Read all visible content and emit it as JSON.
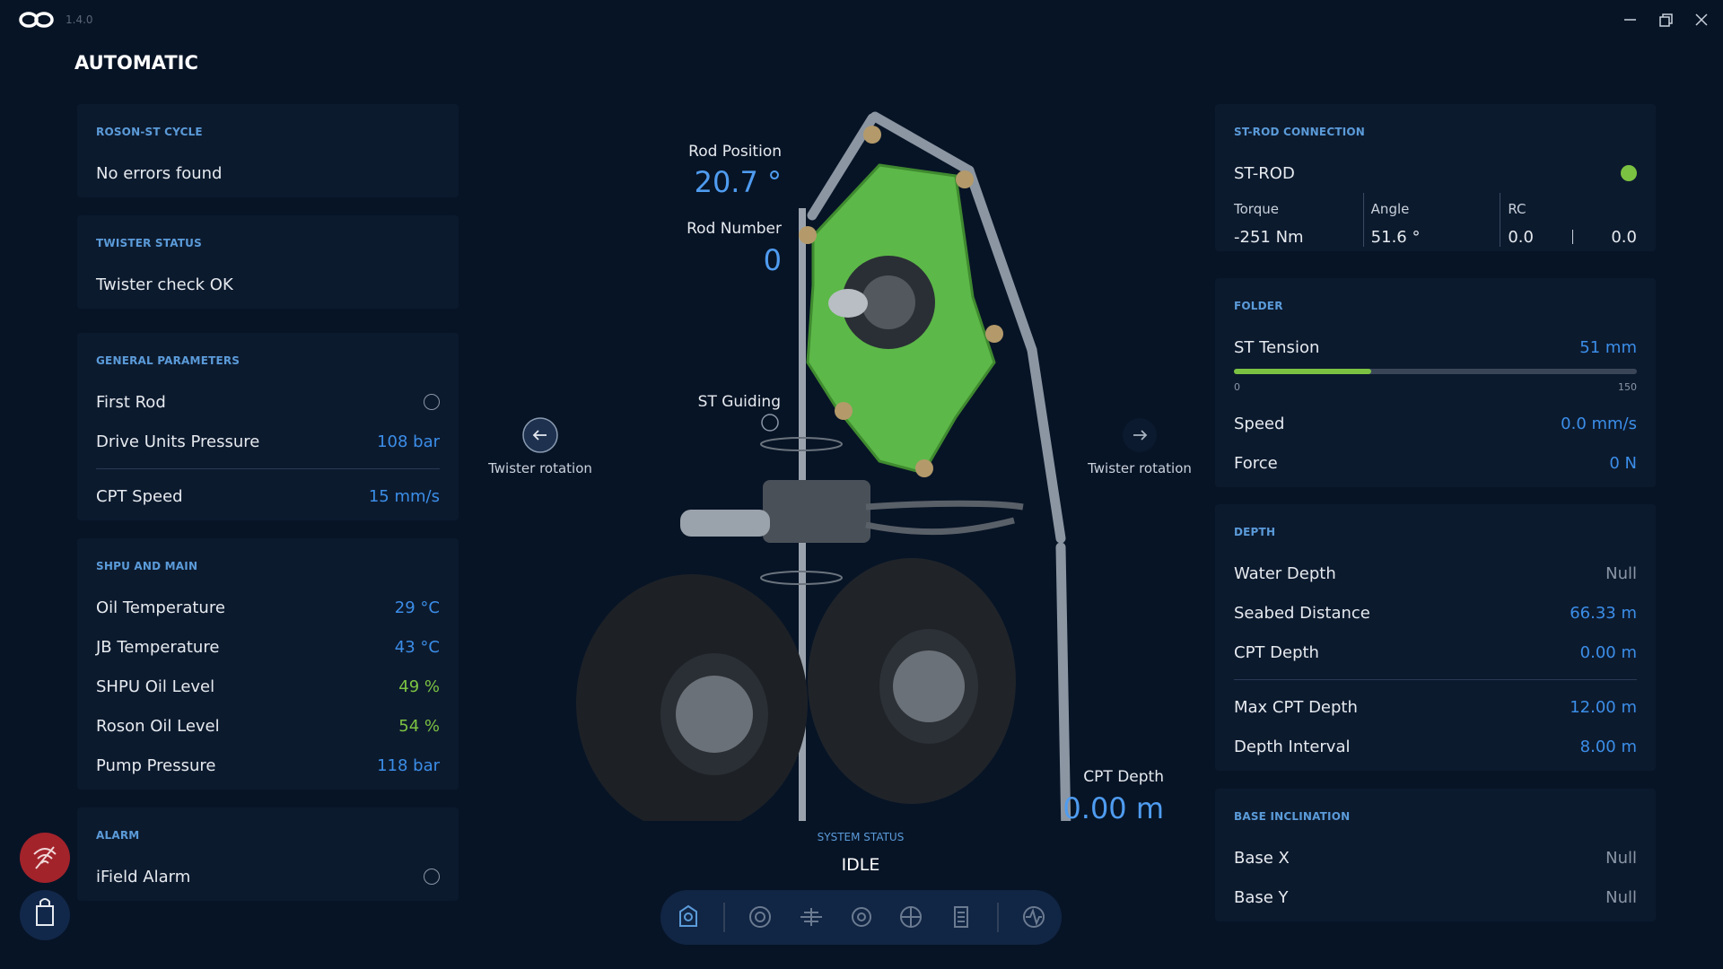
{
  "app": {
    "version": "1.4.0"
  },
  "header": {
    "title": "AUTOMATIC"
  },
  "left_panels": [
    {
      "title": "ROSON-ST CYCLE",
      "groups": [
        [
          {
            "label": "No errors found"
          }
        ]
      ]
    },
    {
      "title": "TWISTER STATUS",
      "groups": [
        [
          {
            "label": "Twister check OK"
          }
        ]
      ]
    },
    {
      "title": "GENERAL PARAMETERS",
      "groups": [
        [
          {
            "label": "First Rod",
            "toggle": false
          },
          {
            "label": "Drive Units Pressure",
            "value": "108 bar"
          }
        ],
        [
          {
            "label": "CPT Speed",
            "value": "15 mm/s"
          }
        ]
      ]
    },
    {
      "title": "SHPU AND MAIN",
      "groups": [
        [
          {
            "label": "Oil Temperature",
            "value": "29 °C"
          },
          {
            "label": "JB Temperature",
            "value": "43 °C"
          },
          {
            "label": "SHPU Oil Level",
            "value": "49 %",
            "color": "#7cc242"
          },
          {
            "label": "Roson Oil Level",
            "value": "54 %",
            "color": "#7cc242"
          },
          {
            "label": "Pump Pressure",
            "value": "118 bar"
          }
        ]
      ]
    },
    {
      "title": "ALARM",
      "groups": [
        [
          {
            "label": "iField Alarm",
            "toggle": false
          }
        ]
      ]
    }
  ],
  "right_panels": [
    {
      "title": "ST-ROD CONNECTION",
      "connection": {
        "label": "ST-ROD",
        "status_color": "#7cc242"
      },
      "metrics": [
        {
          "label": "Torque",
          "value": "-251 Nm"
        },
        {
          "label": "Angle",
          "value": "51.6 °"
        },
        {
          "label": "RC",
          "value": "0.0",
          "value2": "0.0"
        }
      ]
    },
    {
      "title": "FOLDER",
      "gauge": {
        "label": "ST Tension",
        "value": 51,
        "value_label": "51 mm",
        "min": 0,
        "max": 150,
        "color": "#7cc242"
      },
      "groups": [
        [
          {
            "label": "Speed",
            "value": "0.0 mm/s"
          },
          {
            "label": "Force",
            "value": "0 N"
          }
        ]
      ]
    },
    {
      "title": "DEPTH",
      "groups": [
        [
          {
            "label": "Water Depth",
            "value": "Null",
            "color": "#8a96a6"
          },
          {
            "label": "Seabed Distance",
            "value": "66.33 m"
          },
          {
            "label": "CPT Depth",
            "value": "0.00 m"
          }
        ],
        [
          {
            "label": "Max CPT Depth",
            "value": "12.00 m"
          },
          {
            "label": "Depth Interval",
            "value": "8.00 m"
          }
        ]
      ]
    },
    {
      "title": "BASE INCLINATION",
      "groups": [
        [
          {
            "label": "Base X",
            "value": "Null",
            "color": "#8a96a6"
          },
          {
            "label": "Base Y",
            "value": "Null",
            "color": "#8a96a6"
          }
        ]
      ]
    }
  ],
  "center": {
    "rod_position": {
      "label": "Rod Position",
      "value": "20.7 °"
    },
    "rod_number": {
      "label": "Rod Number",
      "value": "0"
    },
    "st_guiding": {
      "label": "ST Guiding"
    },
    "twister_left": {
      "label": "Twister rotation"
    },
    "twister_right": {
      "label": "Twister rotation"
    },
    "cpt_depth": {
      "label": "CPT Depth",
      "value": "0.00 m"
    },
    "system_status": {
      "label": "SYSTEM STATUS",
      "value": "IDLE"
    }
  }
}
